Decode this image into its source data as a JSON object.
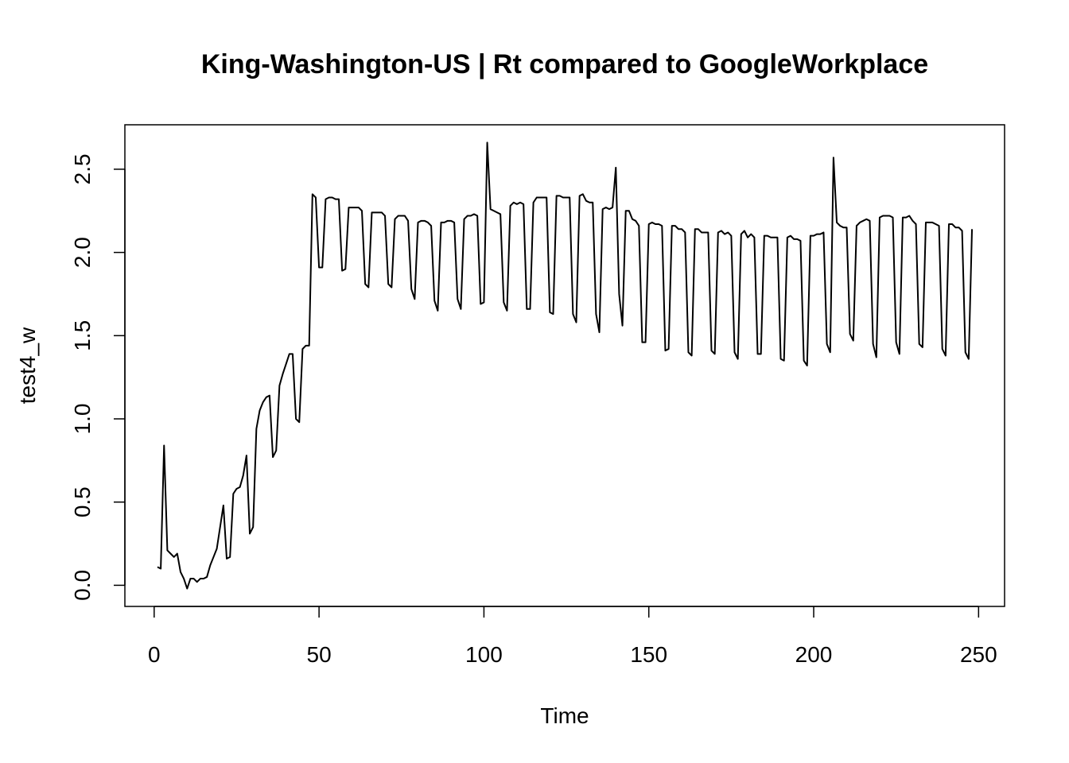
{
  "chart_data": {
    "type": "line",
    "title": "King-Washington-US | Rt compared to GoogleWorkplace",
    "xlabel": "Time",
    "ylabel": "test4_w",
    "color": "#000000",
    "x": [
      1,
      2,
      3,
      4,
      5,
      6,
      7,
      8,
      9,
      10,
      11,
      12,
      13,
      14,
      15,
      16,
      17,
      18,
      19,
      20,
      21,
      22,
      23,
      24,
      25,
      26,
      27,
      28,
      29,
      30,
      31,
      32,
      33,
      34,
      35,
      36,
      37,
      38,
      39,
      40,
      41,
      42,
      43,
      44,
      45,
      46,
      47,
      48,
      49,
      50,
      51,
      52,
      53,
      54,
      55,
      56,
      57,
      58,
      59,
      60,
      61,
      62,
      63,
      64,
      65,
      66,
      67,
      68,
      69,
      70,
      71,
      72,
      73,
      74,
      75,
      76,
      77,
      78,
      79,
      80,
      81,
      82,
      83,
      84,
      85,
      86,
      87,
      88,
      89,
      90,
      91,
      92,
      93,
      94,
      95,
      96,
      97,
      98,
      99,
      100,
      101,
      102,
      103,
      104,
      105,
      106,
      107,
      108,
      109,
      110,
      111,
      112,
      113,
      114,
      115,
      116,
      117,
      118,
      119,
      120,
      121,
      122,
      123,
      124,
      125,
      126,
      127,
      128,
      129,
      130,
      131,
      132,
      133,
      134,
      135,
      136,
      137,
      138,
      139,
      140,
      141,
      142,
      143,
      144,
      145,
      146,
      147,
      148,
      149,
      150,
      151,
      152,
      153,
      154,
      155,
      156,
      157,
      158,
      159,
      160,
      161,
      162,
      163,
      164,
      165,
      166,
      167,
      168,
      169,
      170,
      171,
      172,
      173,
      174,
      175,
      176,
      177,
      178,
      179,
      180,
      181,
      182,
      183,
      184,
      185,
      186,
      187,
      188,
      189,
      190,
      191,
      192,
      193,
      194,
      195,
      196,
      197,
      198,
      199,
      200,
      201,
      202,
      203,
      204,
      205,
      206,
      207,
      208,
      209,
      210,
      211,
      212,
      213,
      214,
      215,
      216,
      217,
      218,
      219,
      220,
      221,
      222,
      223,
      224,
      225,
      226,
      227,
      228,
      229,
      230,
      231,
      232,
      233,
      234,
      235,
      236,
      237,
      238,
      239,
      240,
      241,
      242,
      243,
      244,
      245,
      246,
      247,
      248
    ],
    "values": [
      0.11,
      0.1,
      0.84,
      0.21,
      0.19,
      0.17,
      0.19,
      0.08,
      0.04,
      -0.02,
      0.04,
      0.04,
      0.02,
      0.04,
      0.04,
      0.05,
      0.12,
      0.17,
      0.22,
      0.35,
      0.48,
      0.16,
      0.17,
      0.55,
      0.58,
      0.59,
      0.66,
      0.78,
      0.31,
      0.35,
      0.94,
      1.05,
      1.1,
      1.13,
      1.14,
      0.77,
      0.81,
      1.2,
      1.27,
      1.33,
      1.39,
      1.39,
      1.0,
      0.98,
      1.42,
      1.44,
      1.44,
      2.35,
      2.33,
      1.91,
      1.91,
      2.32,
      2.33,
      2.33,
      2.32,
      2.32,
      1.89,
      1.9,
      2.27,
      2.27,
      2.27,
      2.27,
      2.25,
      1.81,
      1.79,
      2.24,
      2.24,
      2.24,
      2.24,
      2.22,
      1.81,
      1.79,
      2.2,
      2.22,
      2.22,
      2.22,
      2.19,
      1.78,
      1.72,
      2.18,
      2.19,
      2.19,
      2.18,
      2.16,
      1.71,
      1.65,
      2.18,
      2.18,
      2.19,
      2.19,
      2.18,
      1.72,
      1.66,
      2.2,
      2.22,
      2.22,
      2.23,
      2.22,
      1.69,
      1.7,
      2.66,
      2.26,
      2.25,
      2.24,
      2.23,
      1.7,
      1.65,
      2.28,
      2.3,
      2.29,
      2.3,
      2.29,
      1.66,
      1.66,
      2.3,
      2.33,
      2.33,
      2.33,
      2.33,
      1.64,
      1.63,
      2.34,
      2.34,
      2.33,
      2.33,
      2.33,
      1.63,
      1.58,
      2.34,
      2.35,
      2.31,
      2.3,
      2.3,
      1.63,
      1.52,
      2.26,
      2.27,
      2.26,
      2.27,
      2.51,
      1.75,
      1.56,
      2.25,
      2.25,
      2.2,
      2.19,
      2.16,
      1.46,
      1.46,
      2.17,
      2.18,
      2.17,
      2.17,
      2.16,
      1.41,
      1.42,
      2.16,
      2.16,
      2.14,
      2.14,
      2.12,
      1.4,
      1.38,
      2.14,
      2.14,
      2.12,
      2.12,
      2.12,
      1.41,
      1.39,
      2.12,
      2.13,
      2.11,
      2.12,
      2.1,
      1.4,
      1.36,
      2.11,
      2.13,
      2.09,
      2.11,
      2.09,
      1.39,
      1.39,
      2.1,
      2.1,
      2.09,
      2.09,
      2.09,
      1.36,
      1.35,
      2.09,
      2.1,
      2.08,
      2.08,
      2.07,
      1.35,
      1.32,
      2.1,
      2.1,
      2.11,
      2.11,
      2.12,
      1.45,
      1.4,
      2.57,
      2.18,
      2.16,
      2.15,
      2.15,
      1.51,
      1.47,
      2.16,
      2.18,
      2.19,
      2.2,
      2.19,
      1.45,
      1.37,
      2.21,
      2.22,
      2.22,
      2.22,
      2.21,
      1.46,
      1.39,
      2.21,
      2.21,
      2.22,
      2.19,
      2.17,
      1.45,
      1.43,
      2.18,
      2.18,
      2.18,
      2.17,
      2.16,
      1.42,
      1.38,
      2.17,
      2.17,
      2.15,
      2.15,
      2.13,
      1.4,
      1.36,
      2.14
    ],
    "xlim": [
      -8.88,
      257.88
    ],
    "xticks": [
      0,
      50,
      100,
      150,
      200,
      250
    ],
    "ylim": [
      -0.127,
      2.767
    ],
    "yticks": [
      {
        "value": 0,
        "label": "0.0"
      },
      0.5,
      {
        "value": 1,
        "label": "1.0"
      },
      1.5,
      {
        "value": 2,
        "label": "2.0"
      },
      2.5
    ]
  }
}
